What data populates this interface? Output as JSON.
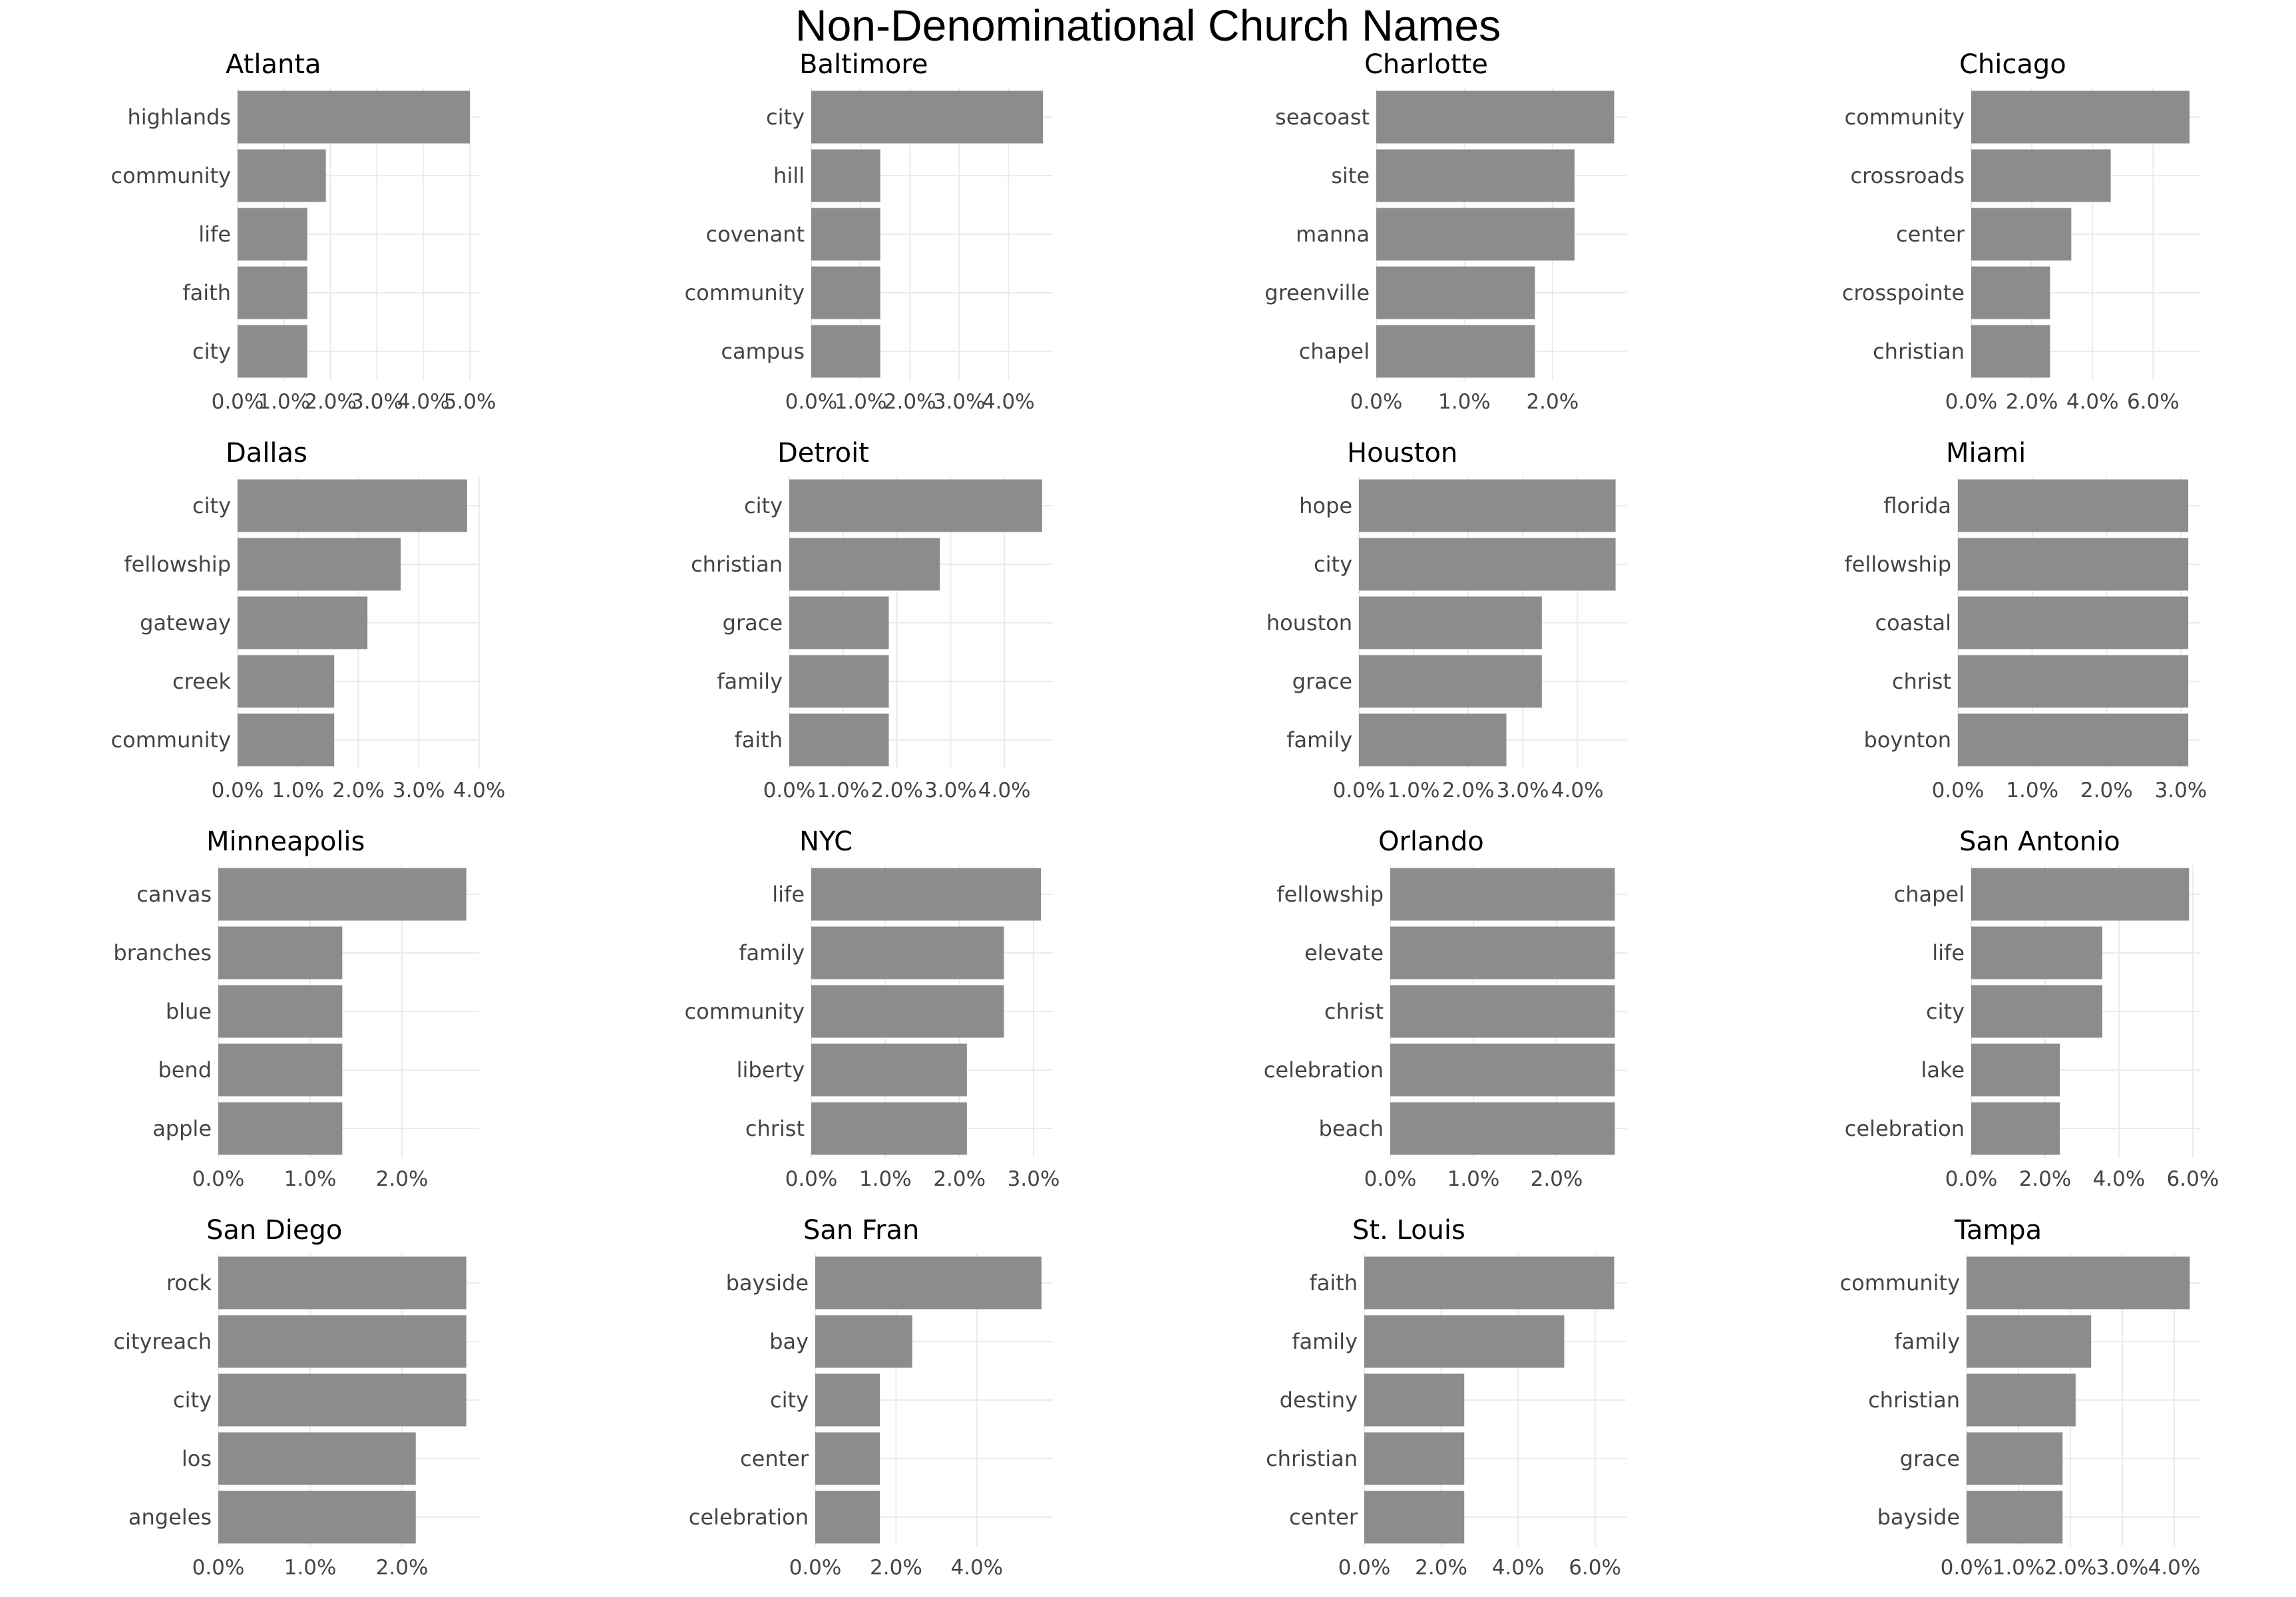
{
  "title": "Non-Denominational Church Names",
  "chart_data": [
    {
      "type": "bar",
      "orientation": "horizontal",
      "title": "Atlanta",
      "categories": [
        "highlands",
        "community",
        "life",
        "faith",
        "city"
      ],
      "values": [
        5.0,
        1.9,
        1.5,
        1.5,
        1.5
      ],
      "xlim": [
        0,
        5.2
      ],
      "xticks": [
        "0.0%",
        "1.0%",
        "2.0%",
        "3.0%",
        "4.0%",
        "5.0%"
      ],
      "xtick_values": [
        0,
        1,
        2,
        3,
        4,
        5
      ]
    },
    {
      "type": "bar",
      "orientation": "horizontal",
      "title": "Baltimore",
      "categories": [
        "city",
        "hill",
        "covenant",
        "community",
        "campus"
      ],
      "values": [
        4.7,
        1.4,
        1.4,
        1.4,
        1.4
      ],
      "xlim": [
        0,
        4.9
      ],
      "xticks": [
        "0.0%",
        "1.0%",
        "2.0%",
        "3.0%",
        "4.0%"
      ],
      "xtick_values": [
        0,
        1,
        2,
        3,
        4
      ]
    },
    {
      "type": "bar",
      "orientation": "horizontal",
      "title": "Charlotte",
      "categories": [
        "seacoast",
        "site",
        "manna",
        "greenville",
        "chapel"
      ],
      "values": [
        2.7,
        2.25,
        2.25,
        1.8,
        1.8
      ],
      "xlim": [
        0,
        2.84
      ],
      "xticks": [
        "0.0%",
        "1.0%",
        "2.0%"
      ],
      "xtick_values": [
        0,
        1,
        2
      ]
    },
    {
      "type": "bar",
      "orientation": "horizontal",
      "title": "Chicago",
      "categories": [
        "community",
        "crossroads",
        "center",
        "crosspointe",
        "christian"
      ],
      "values": [
        7.2,
        4.6,
        3.3,
        2.6,
        2.6
      ],
      "xlim": [
        0,
        7.55
      ],
      "xticks": [
        "0.0%",
        "2.0%",
        "4.0%",
        "6.0%"
      ],
      "xtick_values": [
        0,
        2,
        4,
        6
      ]
    },
    {
      "type": "bar",
      "orientation": "horizontal",
      "title": "Dallas",
      "categories": [
        "city",
        "fellowship",
        "gateway",
        "creek",
        "community"
      ],
      "values": [
        3.8,
        2.7,
        2.15,
        1.6,
        1.6
      ],
      "xlim": [
        0,
        4.0
      ],
      "xticks": [
        "0.0%",
        "1.0%",
        "2.0%",
        "3.0%",
        "4.0%"
      ],
      "xtick_values": [
        0,
        1,
        2,
        3,
        4
      ]
    },
    {
      "type": "bar",
      "orientation": "horizontal",
      "title": "Detroit",
      "categories": [
        "city",
        "christian",
        "grace",
        "family",
        "faith"
      ],
      "values": [
        4.7,
        2.8,
        1.85,
        1.85,
        1.85
      ],
      "xlim": [
        0,
        4.9
      ],
      "xticks": [
        "0.0%",
        "1.0%",
        "2.0%",
        "3.0%",
        "4.0%"
      ],
      "xtick_values": [
        0,
        1,
        2,
        3,
        4
      ]
    },
    {
      "type": "bar",
      "orientation": "horizontal",
      "title": "Houston",
      "categories": [
        "hope",
        "city",
        "houston",
        "grace",
        "family"
      ],
      "values": [
        4.7,
        4.7,
        3.35,
        3.35,
        2.7
      ],
      "xlim": [
        0,
        4.9
      ],
      "xticks": [
        "0.0%",
        "1.0%",
        "2.0%",
        "3.0%",
        "4.0%"
      ],
      "xtick_values": [
        0,
        1,
        2,
        3,
        4
      ]
    },
    {
      "type": "bar",
      "orientation": "horizontal",
      "title": "Miami",
      "categories": [
        "florida",
        "fellowship",
        "coastal",
        "christ",
        "boynton"
      ],
      "values": [
        3.1,
        3.1,
        3.1,
        3.1,
        3.1
      ],
      "xlim": [
        0,
        3.26
      ],
      "xticks": [
        "0.0%",
        "1.0%",
        "2.0%",
        "3.0%"
      ],
      "xtick_values": [
        0,
        1,
        2,
        3
      ]
    },
    {
      "type": "bar",
      "orientation": "horizontal",
      "title": "Minneapolis",
      "categories": [
        "canvas",
        "branches",
        "blue",
        "bend",
        "apple"
      ],
      "values": [
        2.7,
        1.35,
        1.35,
        1.35,
        1.35
      ],
      "xlim": [
        0,
        2.84
      ],
      "xticks": [
        "0.0%",
        "1.0%",
        "2.0%"
      ],
      "xtick_values": [
        0,
        1,
        2
      ]
    },
    {
      "type": "bar",
      "orientation": "horizontal",
      "title": "NYC",
      "categories": [
        "life",
        "family",
        "community",
        "liberty",
        "christ"
      ],
      "values": [
        3.1,
        2.6,
        2.6,
        2.1,
        2.1
      ],
      "xlim": [
        0,
        3.26
      ],
      "xticks": [
        "0.0%",
        "1.0%",
        "2.0%",
        "3.0%"
      ],
      "xtick_values": [
        0,
        1,
        2,
        3
      ]
    },
    {
      "type": "bar",
      "orientation": "horizontal",
      "title": "Orlando",
      "categories": [
        "fellowship",
        "elevate",
        "christ",
        "celebration",
        "beach"
      ],
      "values": [
        2.7,
        2.7,
        2.7,
        2.7,
        2.7
      ],
      "xlim": [
        0,
        2.84
      ],
      "xticks": [
        "0.0%",
        "1.0%",
        "2.0%"
      ],
      "xtick_values": [
        0,
        1,
        2
      ]
    },
    {
      "type": "bar",
      "orientation": "horizontal",
      "title": "San Antonio",
      "categories": [
        "chapel",
        "life",
        "city",
        "lake",
        "celebration"
      ],
      "values": [
        5.9,
        3.55,
        3.55,
        2.4,
        2.4
      ],
      "xlim": [
        0,
        6.2
      ],
      "xticks": [
        "0.0%",
        "2.0%",
        "4.0%",
        "6.0%"
      ],
      "xtick_values": [
        0,
        2,
        4,
        6
      ]
    },
    {
      "type": "bar",
      "orientation": "horizontal",
      "title": "San Diego",
      "categories": [
        "rock",
        "cityreach",
        "city",
        "los",
        "angeles"
      ],
      "values": [
        2.7,
        2.7,
        2.7,
        2.15,
        2.15
      ],
      "xlim": [
        0,
        2.84
      ],
      "xticks": [
        "0.0%",
        "1.0%",
        "2.0%"
      ],
      "xtick_values": [
        0,
        1,
        2
      ]
    },
    {
      "type": "bar",
      "orientation": "horizontal",
      "title": "San Fran",
      "categories": [
        "bayside",
        "bay",
        "city",
        "center",
        "celebration"
      ],
      "values": [
        5.6,
        2.4,
        1.6,
        1.6,
        1.6
      ],
      "xlim": [
        0,
        5.88
      ],
      "xticks": [
        "0.0%",
        "2.0%",
        "4.0%"
      ],
      "xtick_values": [
        0,
        2,
        4
      ]
    },
    {
      "type": "bar",
      "orientation": "horizontal",
      "title": "St. Louis",
      "categories": [
        "faith",
        "family",
        "destiny",
        "christian",
        "center"
      ],
      "values": [
        6.5,
        5.2,
        2.6,
        2.6,
        2.6
      ],
      "xlim": [
        0,
        6.82
      ],
      "xticks": [
        "0.0%",
        "2.0%",
        "4.0%",
        "6.0%"
      ],
      "xtick_values": [
        0,
        2,
        4,
        6
      ]
    },
    {
      "type": "bar",
      "orientation": "horizontal",
      "title": "Tampa",
      "categories": [
        "community",
        "family",
        "christian",
        "grace",
        "bayside"
      ],
      "values": [
        4.3,
        2.4,
        2.1,
        1.85,
        1.85
      ],
      "xlim": [
        0,
        4.5
      ],
      "xticks": [
        "0.0%",
        "1.0%",
        "2.0%",
        "3.0%",
        "4.0%"
      ],
      "xtick_values": [
        0,
        1,
        2,
        3,
        4
      ]
    }
  ]
}
